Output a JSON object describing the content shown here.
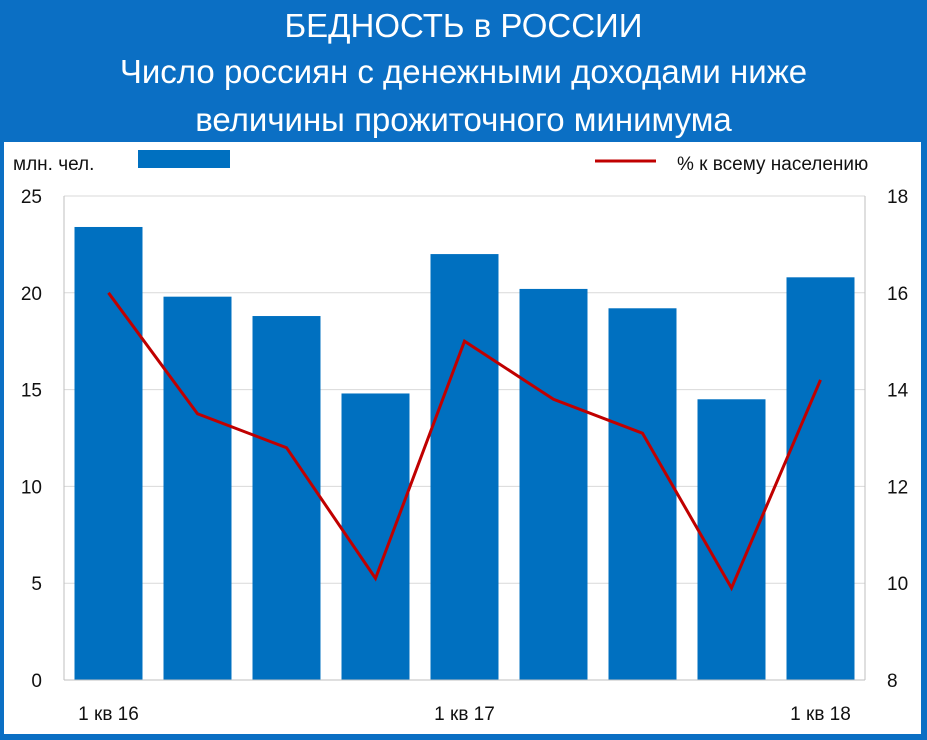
{
  "header": {
    "line1": "БЕДНОСТЬ в РОССИИ",
    "line2": "Число россиян с денежными доходами ниже",
    "line3": "величины прожиточного минимума"
  },
  "legend": {
    "bars_label": "млн. чел.",
    "line_label": "%  к всему населению"
  },
  "colors": {
    "bar": "#0070c0",
    "line": "#c00000",
    "background": "#0b6fc4"
  },
  "chart_data": {
    "type": "bar",
    "categories": [
      "1 кв 16",
      "",
      "",
      "",
      "1 кв 17",
      "",
      "",
      "",
      "1 кв 18"
    ],
    "series": [
      {
        "name": "млн. чел.",
        "type": "bar",
        "axis": "left",
        "values": [
          23.4,
          19.8,
          18.8,
          14.8,
          22.0,
          20.2,
          19.2,
          14.5,
          20.8
        ]
      },
      {
        "name": "%  к всему населению",
        "type": "line",
        "axis": "right",
        "values": [
          16.0,
          13.5,
          12.8,
          10.1,
          15.0,
          13.8,
          13.1,
          9.9,
          14.2
        ]
      }
    ],
    "y_left": {
      "min": 0,
      "max": 25,
      "ticks": [
        0,
        5,
        10,
        15,
        20,
        25
      ]
    },
    "y_right": {
      "min": 8,
      "max": 18,
      "ticks": [
        8,
        10,
        12,
        14,
        16,
        18
      ]
    },
    "x_tick_labels": [
      "1 кв 16",
      "1 кв 17",
      "1 кв 18"
    ],
    "grid": true,
    "legend_position": "top"
  }
}
